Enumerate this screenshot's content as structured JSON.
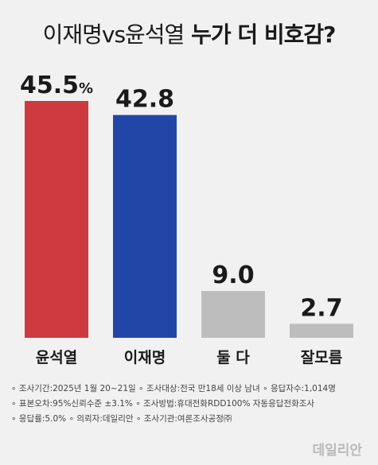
{
  "title_part1": "이재명vs윤석열",
  "title_part2": "누가 더 비호감?",
  "chart_data": {
    "type": "bar",
    "categories": [
      "윤석열",
      "이재명",
      "둘 다",
      "잘모름"
    ],
    "values": [
      45.5,
      42.8,
      9.0,
      2.7
    ],
    "value_labels": [
      "45.5",
      "42.8",
      "9.0",
      "2.7"
    ],
    "value_suffixes": [
      "%",
      "",
      "",
      ""
    ],
    "colors": [
      "#cf3a3f",
      "#2246a8",
      "#bdbdbd",
      "#bdbdbd"
    ],
    "ylim": [
      0,
      45.5
    ]
  },
  "notes": {
    "line1": "∘ 조사기간:2025년 1월 20~21일  ∘ 조사대상:전국 만18세 이상 남녀  ∘ 응답자수:1,014명",
    "line2": "∘ 표본오차:95%신뢰수준 ±3.1%  ∘ 조사방법:휴대전화RDD100% 자동응답전화조사",
    "line3": "∘ 응답률:5.0%  ∘ 의뢰자:데일리안  ∘ 조사기관:여론조사공정㈜"
  },
  "watermark": "데일리안"
}
